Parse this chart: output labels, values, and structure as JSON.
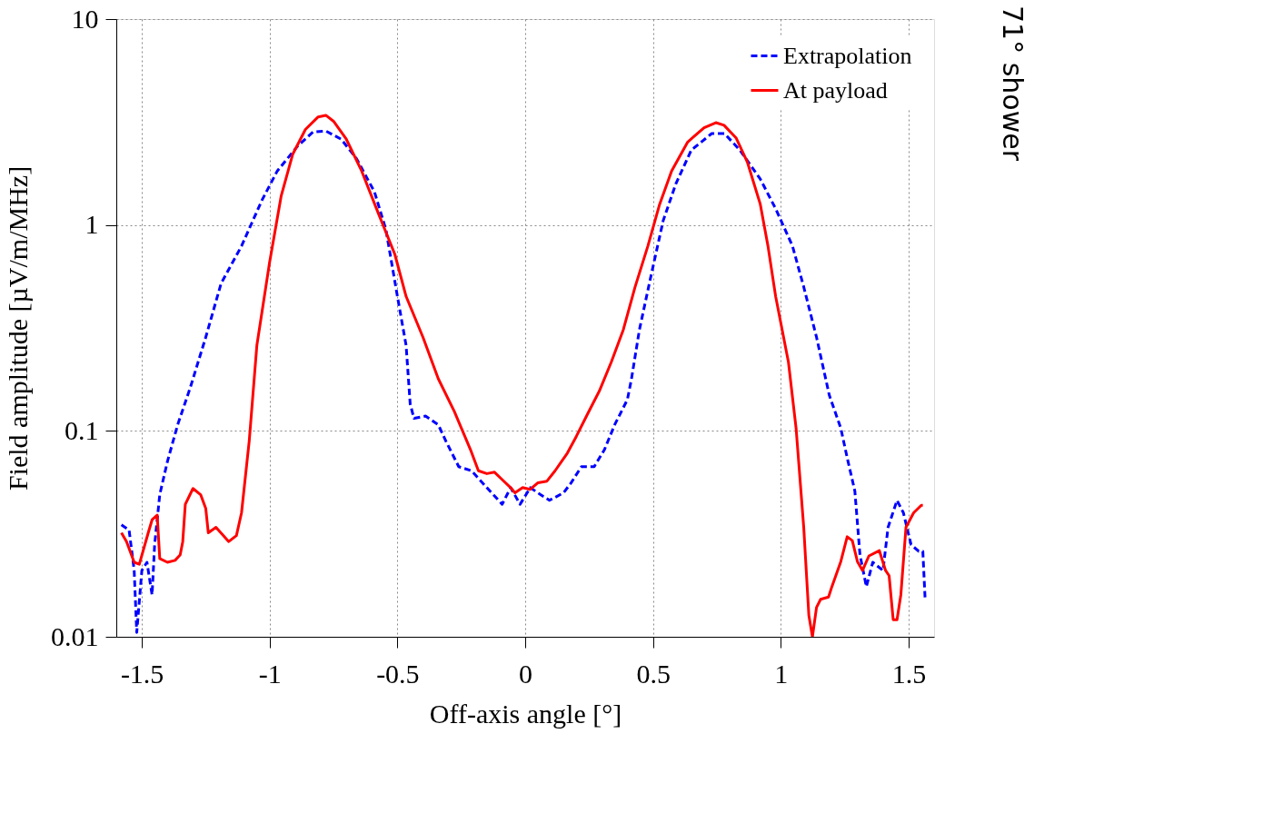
{
  "chart_data": {
    "type": "line",
    "title": "71° shower",
    "xlabel": "Off-axis angle [°]",
    "ylabel": "Field amplitude [µV/m/MHz]",
    "xlim": [
      -1.6,
      1.6
    ],
    "xticks": [
      -1.5,
      -1,
      -0.5,
      0,
      0.5,
      1,
      1.5
    ],
    "ylim": [
      0.01,
      10
    ],
    "yticks": [
      0.01,
      0.1,
      1,
      10
    ],
    "log": "y",
    "grid": true,
    "legend": "top right",
    "marker": "none",
    "series": [
      {
        "name": "Extrapolation",
        "color": "#0000ff",
        "line_style": "dashed",
        "x": [
          -1.58,
          -1.55,
          -1.53,
          -1.52,
          -1.5,
          -1.48,
          -1.46,
          -1.45,
          -1.43,
          -1.4,
          -1.36,
          -1.31,
          -1.25,
          -1.19,
          -1.11,
          -1.03,
          -0.97,
          -0.89,
          -0.83,
          -0.78,
          -0.72,
          -0.66,
          -0.59,
          -0.545,
          -0.5,
          -0.466,
          -0.45,
          -0.435,
          -0.39,
          -0.34,
          -0.31,
          -0.26,
          -0.21,
          -0.15,
          -0.09,
          -0.057,
          -0.02,
          0.02,
          0.06,
          0.095,
          0.15,
          0.18,
          0.22,
          0.27,
          0.31,
          0.35,
          0.4,
          0.416,
          0.447,
          0.49,
          0.54,
          0.59,
          0.65,
          0.73,
          0.78,
          0.84,
          0.92,
          0.98,
          1.046,
          1.09,
          1.14,
          1.19,
          1.235,
          1.26,
          1.29,
          1.31,
          1.335,
          1.36,
          1.4,
          1.42,
          1.455,
          1.48,
          1.51,
          1.54,
          1.556,
          1.565
        ],
        "values": [
          0.035,
          0.033,
          0.021,
          0.0105,
          0.021,
          0.023,
          0.016,
          0.028,
          0.049,
          0.071,
          0.107,
          0.163,
          0.285,
          0.52,
          0.79,
          1.32,
          1.83,
          2.42,
          2.83,
          2.86,
          2.61,
          2.1,
          1.45,
          0.95,
          0.45,
          0.26,
          0.135,
          0.115,
          0.118,
          0.107,
          0.089,
          0.067,
          0.064,
          0.053,
          0.044,
          0.053,
          0.044,
          0.053,
          0.049,
          0.046,
          0.05,
          0.056,
          0.067,
          0.067,
          0.081,
          0.107,
          0.142,
          0.179,
          0.31,
          0.55,
          1.05,
          1.59,
          2.31,
          2.78,
          2.78,
          2.31,
          1.67,
          1.2,
          0.79,
          0.5,
          0.285,
          0.149,
          0.103,
          0.074,
          0.051,
          0.025,
          0.0175,
          0.023,
          0.021,
          0.034,
          0.046,
          0.04,
          0.028,
          0.026,
          0.026,
          0.0152
        ]
      },
      {
        "name": "At payload",
        "color": "#ff0000",
        "line_style": "solid",
        "x": [
          -1.58,
          -1.56,
          -1.53,
          -1.51,
          -1.475,
          -1.46,
          -1.44,
          -1.43,
          -1.4,
          -1.37,
          -1.35,
          -1.34,
          -1.33,
          -1.3,
          -1.27,
          -1.25,
          -1.24,
          -1.21,
          -1.16,
          -1.13,
          -1.11,
          -1.08,
          -1.05,
          -1.0,
          -0.955,
          -0.91,
          -0.86,
          -0.81,
          -0.78,
          -0.75,
          -0.7,
          -0.64,
          -0.576,
          -0.51,
          -0.466,
          -0.4,
          -0.34,
          -0.277,
          -0.214,
          -0.183,
          -0.15,
          -0.12,
          -0.09,
          -0.057,
          -0.04,
          -0.01,
          0.02,
          0.05,
          0.085,
          0.117,
          0.165,
          0.2,
          0.24,
          0.29,
          0.337,
          0.384,
          0.43,
          0.48,
          0.526,
          0.573,
          0.636,
          0.7,
          0.746,
          0.778,
          0.825,
          0.87,
          0.92,
          0.95,
          0.98,
          1.03,
          1.06,
          1.09,
          1.11,
          1.124,
          1.14,
          1.156,
          1.187,
          1.2,
          1.235,
          1.26,
          1.28,
          1.3,
          1.32,
          1.345,
          1.386,
          1.41,
          1.424,
          1.44,
          1.455,
          1.47,
          1.49,
          1.52,
          1.55,
          1.556
        ],
        "values": [
          0.032,
          0.029,
          0.023,
          0.0225,
          0.032,
          0.037,
          0.039,
          0.024,
          0.023,
          0.0235,
          0.025,
          0.029,
          0.044,
          0.0525,
          0.049,
          0.042,
          0.032,
          0.034,
          0.029,
          0.031,
          0.04,
          0.089,
          0.26,
          0.66,
          1.38,
          2.2,
          2.91,
          3.35,
          3.41,
          3.19,
          2.61,
          1.83,
          1.15,
          0.72,
          0.45,
          0.285,
          0.179,
          0.124,
          0.081,
          0.064,
          0.062,
          0.063,
          0.058,
          0.053,
          0.05,
          0.053,
          0.052,
          0.056,
          0.057,
          0.064,
          0.078,
          0.094,
          0.118,
          0.156,
          0.216,
          0.31,
          0.5,
          0.79,
          1.26,
          1.83,
          2.53,
          2.97,
          3.14,
          3.05,
          2.65,
          2.01,
          1.26,
          0.79,
          0.45,
          0.216,
          0.103,
          0.034,
          0.0127,
          0.01,
          0.0139,
          0.0152,
          0.0156,
          0.0175,
          0.0232,
          0.0306,
          0.0293,
          0.0232,
          0.021,
          0.0247,
          0.0262,
          0.021,
          0.0198,
          0.0121,
          0.0121,
          0.016,
          0.034,
          0.04,
          0.0435,
          0.0435
        ]
      }
    ]
  }
}
